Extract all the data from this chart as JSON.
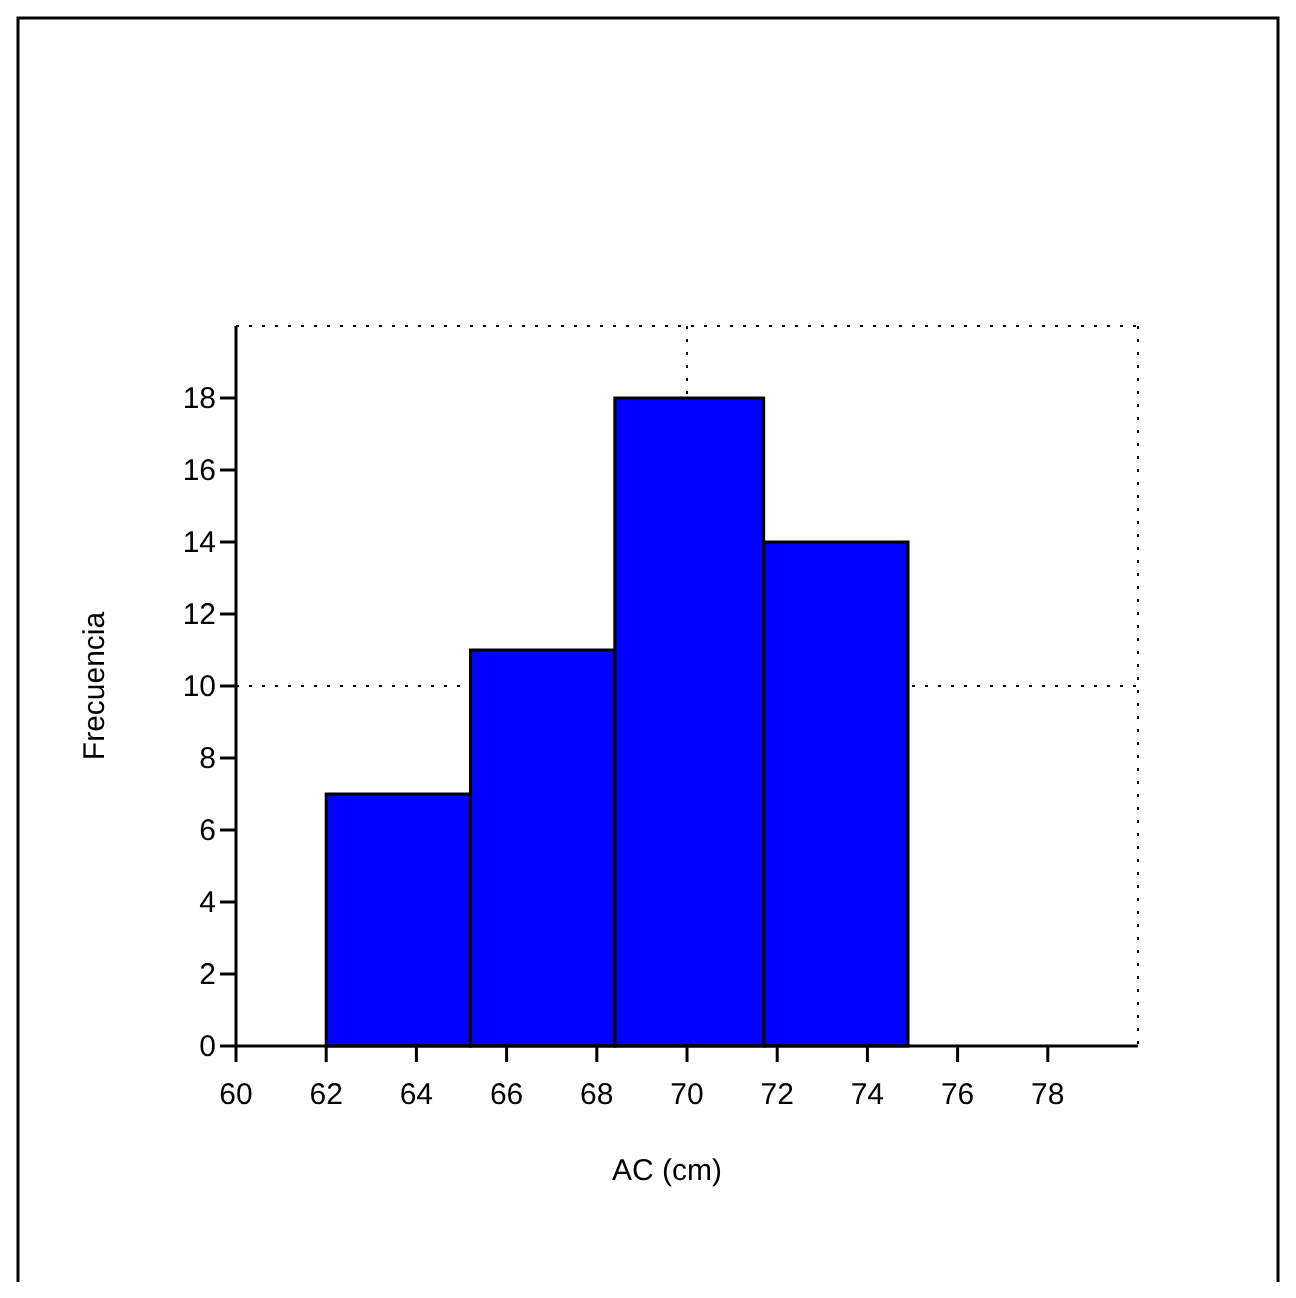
{
  "chart_data": {
    "type": "histogram",
    "xlabel": "AC (cm)",
    "ylabel": "Frecuencia",
    "bins": [
      62,
      65.2,
      68.4,
      71.7,
      74.9
    ],
    "values": [
      7,
      11,
      18,
      14
    ],
    "color": "#0000ff",
    "xlim": [
      60,
      80
    ],
    "xticks": [
      60,
      62,
      64,
      66,
      68,
      70,
      72,
      74,
      76,
      78
    ],
    "ylim": [
      0,
      20
    ],
    "yticks": [
      0,
      2,
      4,
      6,
      8,
      10,
      12,
      14,
      16,
      18
    ],
    "ref_lines": [
      {
        "axis": "y",
        "value": 10,
        "line_style": "dotted"
      },
      {
        "axis": "x",
        "value": 70,
        "line_style": "dotted"
      }
    ]
  }
}
